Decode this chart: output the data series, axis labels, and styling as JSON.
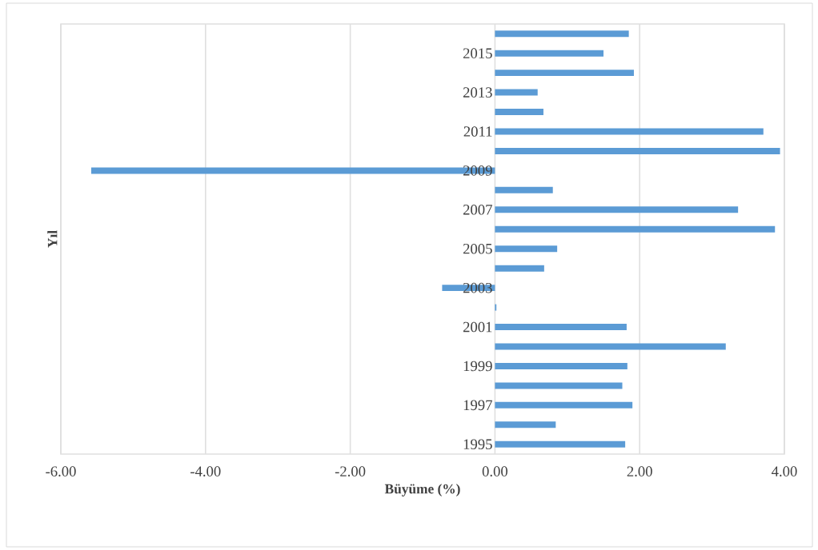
{
  "chart_data": {
    "type": "bar",
    "orientation": "horizontal",
    "xlabel": "Büyüme (%)",
    "ylabel": "Yıl",
    "categories": [
      null,
      "2015",
      null,
      "2013",
      null,
      "2011",
      null,
      "2009",
      null,
      "2007",
      null,
      "2005",
      null,
      "2003",
      null,
      "2001",
      null,
      "1999",
      null,
      "1997",
      null,
      "1995"
    ],
    "values": [
      1.85,
      1.5,
      1.92,
      0.59,
      0.67,
      3.71,
      3.94,
      -5.58,
      0.8,
      3.36,
      3.87,
      0.86,
      0.68,
      -0.73,
      0.02,
      1.82,
      3.19,
      1.83,
      1.76,
      1.9,
      0.84,
      1.8
    ],
    "color": "#5b9bd5",
    "xlim": [
      -6,
      4
    ],
    "xticks": [
      {
        "value": -6,
        "label": "-6.00"
      },
      {
        "value": -4,
        "label": "-4.00"
      },
      {
        "value": -2,
        "label": "-2.00"
      },
      {
        "value": 0,
        "label": "0.00"
      },
      {
        "value": 2,
        "label": "2.00"
      },
      {
        "value": 4,
        "label": "4.00"
      }
    ],
    "grid": true
  }
}
